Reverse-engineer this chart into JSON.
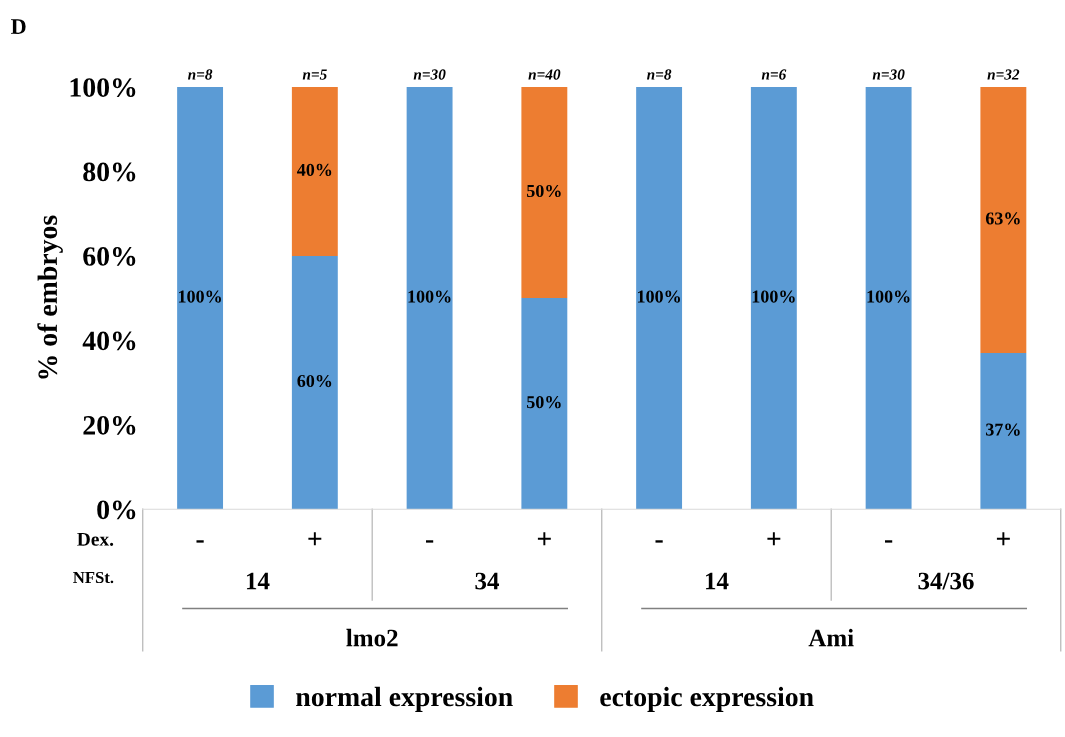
{
  "chart_data": {
    "type": "bar",
    "stacked": true,
    "categories": [
      "-",
      "+",
      "-",
      "+",
      "-",
      "+",
      "-",
      "+"
    ],
    "series": [
      {
        "name": "normal expression",
        "color": "#5b9bd5",
        "values": [
          100,
          60,
          100,
          50,
          100,
          100,
          100,
          37
        ],
        "value_labels": [
          "100%",
          "60%",
          "100%",
          "50%",
          "100%",
          "100%",
          "100%",
          "37%"
        ]
      },
      {
        "name": "ectopic expression",
        "color": "#ed7d31",
        "values": [
          0,
          40,
          0,
          50,
          0,
          0,
          0,
          63
        ],
        "value_labels": [
          null,
          "40%",
          null,
          "50%",
          null,
          null,
          null,
          "63%"
        ]
      }
    ],
    "ylabel": "% of embryos",
    "ylim": [
      0,
      100
    ],
    "yticks": [
      {
        "value": 0,
        "label": "0%"
      },
      {
        "value": 20,
        "label": "20%"
      },
      {
        "value": 40,
        "label": "40%"
      },
      {
        "value": 60,
        "label": "60%"
      },
      {
        "value": 80,
        "label": "80%"
      },
      {
        "value": 100,
        "label": "100%"
      }
    ],
    "annotations": [
      "D",
      "Dex.",
      "NFSt.",
      "14",
      "34",
      "14",
      "34/36",
      "lmo2",
      "Ami",
      "n=8",
      "n=5",
      "n=30",
      "n=40",
      "n=8",
      "n=6",
      "n=30",
      "n=32"
    ],
    "legend": "bottom",
    "grid": false
  }
}
